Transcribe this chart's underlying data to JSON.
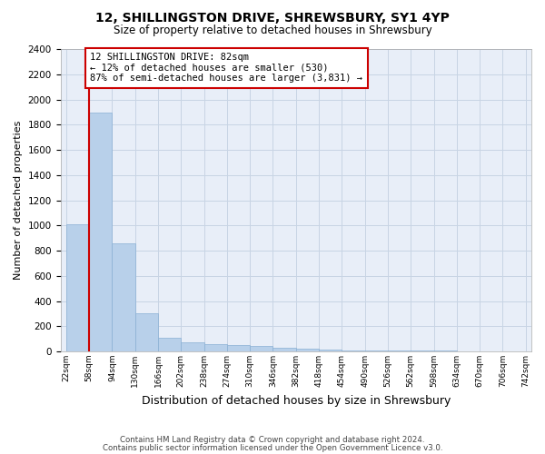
{
  "title1": "12, SHILLINGSTON DRIVE, SHREWSBURY, SY1 4YP",
  "title2": "Size of property relative to detached houses in Shrewsbury",
  "xlabel": "Distribution of detached houses by size in Shrewsbury",
  "ylabel": "Number of detached properties",
  "bar_values": [
    1012,
    1895,
    860,
    305,
    110,
    75,
    60,
    50,
    40,
    30,
    20,
    15,
    10,
    8,
    6,
    5,
    4,
    3,
    2,
    1
  ],
  "categories": [
    "22sqm",
    "58sqm",
    "94sqm",
    "130sqm",
    "166sqm",
    "202sqm",
    "238sqm",
    "274sqm",
    "310sqm",
    "346sqm",
    "382sqm",
    "418sqm",
    "454sqm",
    "490sqm",
    "526sqm",
    "562sqm",
    "598sqm",
    "634sqm",
    "670sqm",
    "706sqm",
    "742sqm"
  ],
  "bar_color": "#b8d0ea",
  "bar_edge_color": "#8ab0d4",
  "vline_color": "#cc0000",
  "annotation_text": "12 SHILLINGSTON DRIVE: 82sqm\n← 12% of detached houses are smaller (530)\n87% of semi-detached houses are larger (3,831) →",
  "annotation_box_color": "#cc0000",
  "ylim": [
    0,
    2400
  ],
  "yticks": [
    0,
    200,
    400,
    600,
    800,
    1000,
    1200,
    1400,
    1600,
    1800,
    2000,
    2200,
    2400
  ],
  "footer1": "Contains HM Land Registry data © Crown copyright and database right 2024.",
  "footer2": "Contains public sector information licensed under the Open Government Licence v3.0.",
  "bg_color": "#ffffff",
  "plot_bg_color": "#e8eef8",
  "grid_color": "#c8d4e4"
}
